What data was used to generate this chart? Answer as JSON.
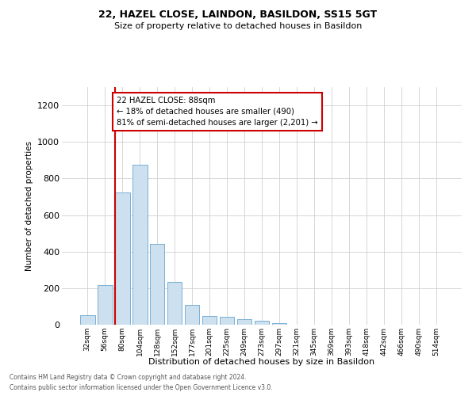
{
  "title1": "22, HAZEL CLOSE, LAINDON, BASILDON, SS15 5GT",
  "title2": "Size of property relative to detached houses in Basildon",
  "xlabel": "Distribution of detached houses by size in Basildon",
  "ylabel": "Number of detached properties",
  "categories": [
    "32sqm",
    "56sqm",
    "80sqm",
    "104sqm",
    "128sqm",
    "152sqm",
    "177sqm",
    "201sqm",
    "225sqm",
    "249sqm",
    "273sqm",
    "297sqm",
    "321sqm",
    "345sqm",
    "369sqm",
    "393sqm",
    "418sqm",
    "442sqm",
    "466sqm",
    "490sqm",
    "514sqm"
  ],
  "values": [
    50,
    215,
    725,
    875,
    440,
    235,
    110,
    48,
    45,
    30,
    20,
    10,
    0,
    0,
    0,
    0,
    0,
    0,
    0,
    0,
    0
  ],
  "bar_color": "#cce0f0",
  "bar_edge_color": "#7ab0d4",
  "vline_color": "#cc0000",
  "annotation_text": "22 HAZEL CLOSE: 88sqm\n← 18% of detached houses are smaller (490)\n81% of semi-detached houses are larger (2,201) →",
  "annotation_box_color": "#cc0000",
  "ylim": [
    0,
    1300
  ],
  "yticks": [
    0,
    200,
    400,
    600,
    800,
    1000,
    1200
  ],
  "footer1": "Contains HM Land Registry data © Crown copyright and database right 2024.",
  "footer2": "Contains public sector information licensed under the Open Government Licence v3.0.",
  "background_color": "#ffffff",
  "grid_color": "#d0d0d0",
  "vline_bar_index": 2
}
